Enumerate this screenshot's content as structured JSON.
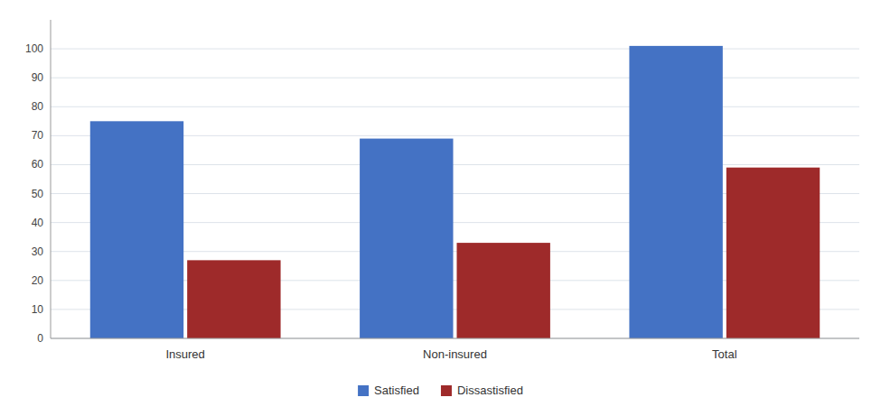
{
  "chart_data": {
    "type": "bar",
    "categories": [
      "Insured",
      "Non-insured",
      "Total"
    ],
    "series": [
      {
        "name": "Satisfied",
        "color": "#4472C4",
        "values": [
          75,
          69,
          101
        ]
      },
      {
        "name": "Dissastisfied",
        "color": "#9E2A2A",
        "values": [
          27,
          33,
          59
        ]
      }
    ],
    "ylim": [
      0,
      110
    ],
    "yticks": [
      0,
      10,
      20,
      30,
      40,
      50,
      60,
      70,
      80,
      90,
      100
    ],
    "grid": true,
    "legend": "bottom"
  }
}
